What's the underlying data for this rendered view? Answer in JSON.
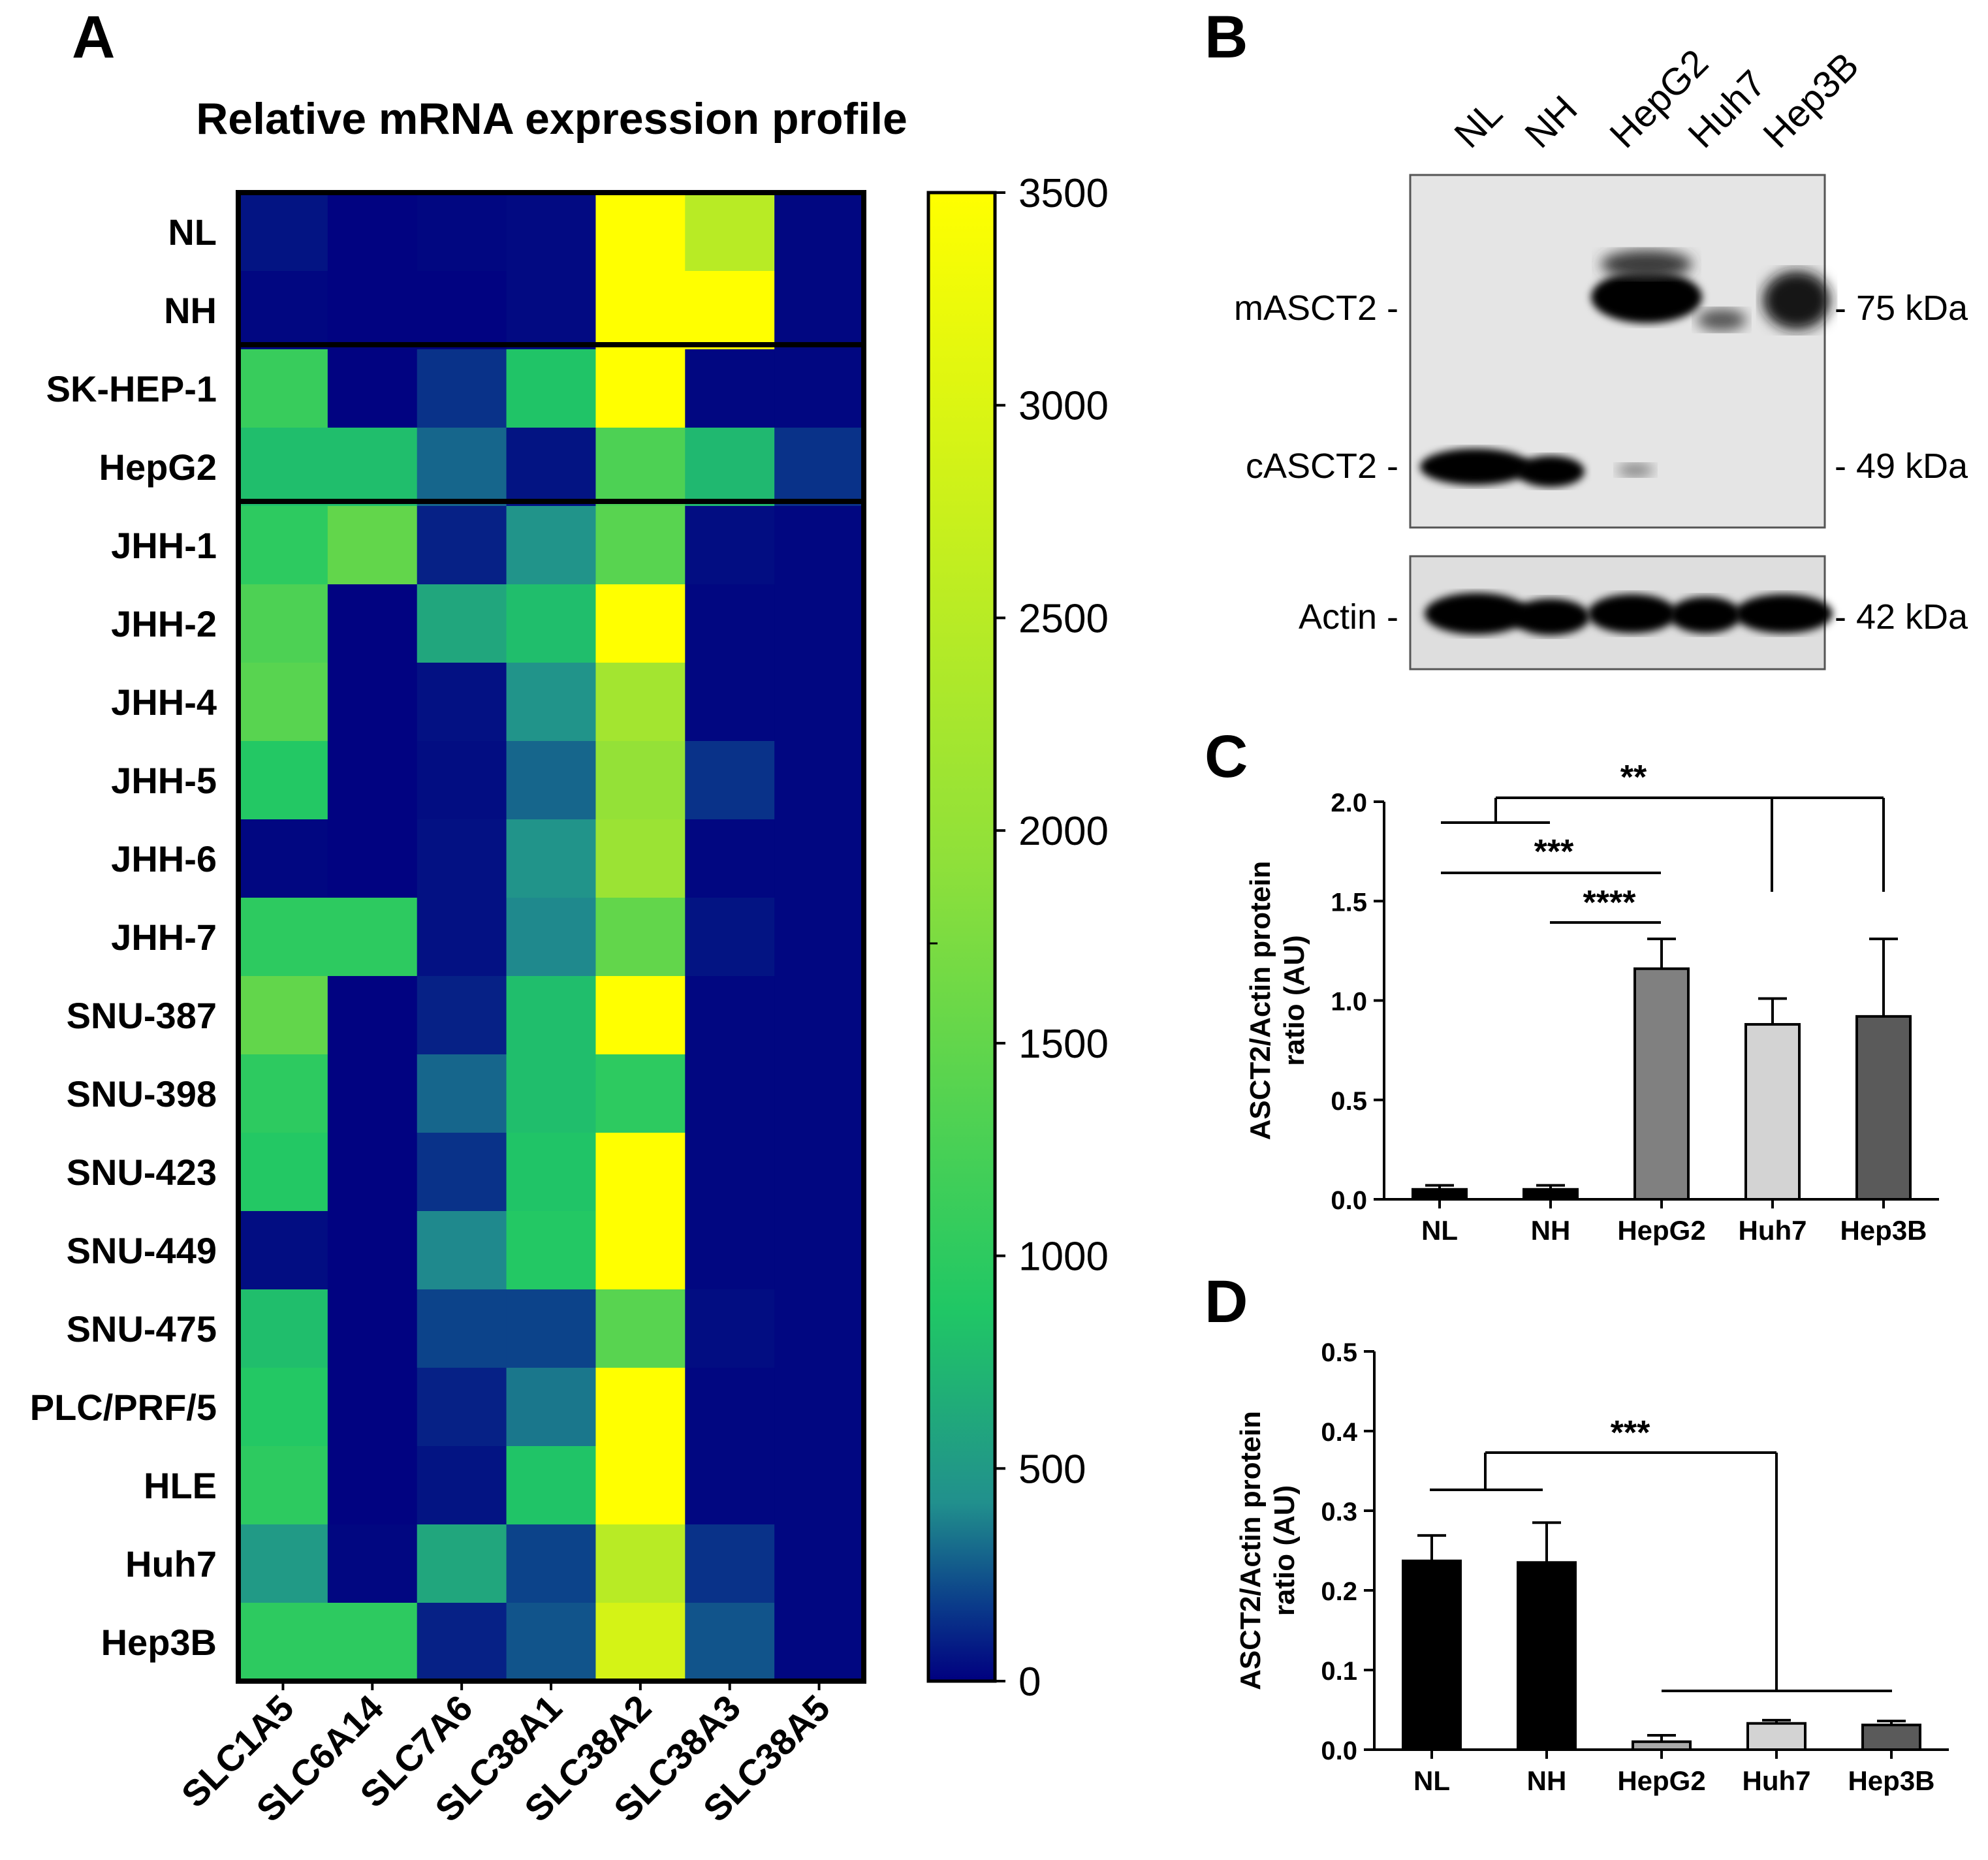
{
  "panels": {
    "A": {
      "letter": "A"
    },
    "B": {
      "letter": "B"
    },
    "C": {
      "letter": "C"
    },
    "D": {
      "letter": "D"
    }
  },
  "chart_data": [
    {
      "type": "heatmap",
      "title": "Relative mRNA expression profile",
      "rows": [
        "NL",
        "NH",
        "SK-HEP-1",
        "HepG2",
        "JHH-1",
        "JHH-2",
        "JHH-4",
        "JHH-5",
        "JHH-6",
        "JHH-7",
        "SNU-387",
        "SNU-398",
        "SNU-423",
        "SNU-449",
        "SNU-475",
        "PLC/PRF/5",
        "HLE",
        "Huh7",
        "Hep3B"
      ],
      "columns": [
        "SLC1A5",
        "SLC6A14",
        "SLC7A6",
        "SLC38A1",
        "SLC38A2",
        "SLC38A3",
        "SLC38A5"
      ],
      "values": [
        [
          60,
          10,
          20,
          30,
          3500,
          2500,
          20
        ],
        [
          20,
          10,
          10,
          30,
          3500,
          3500,
          20
        ],
        [
          1100,
          10,
          150,
          850,
          3500,
          20,
          20
        ],
        [
          800,
          800,
          300,
          60,
          1300,
          750,
          150
        ],
        [
          1000,
          1500,
          100,
          450,
          1400,
          40,
          20
        ],
        [
          1300,
          10,
          600,
          800,
          3500,
          20,
          20
        ],
        [
          1400,
          10,
          50,
          450,
          2200,
          20,
          20
        ],
        [
          900,
          10,
          40,
          300,
          2000,
          150,
          20
        ],
        [
          20,
          10,
          50,
          450,
          2100,
          20,
          20
        ],
        [
          1000,
          1000,
          50,
          400,
          1500,
          60,
          20
        ],
        [
          1500,
          10,
          100,
          800,
          3500,
          20,
          20
        ],
        [
          1000,
          10,
          300,
          800,
          1000,
          20,
          20
        ],
        [
          900,
          10,
          150,
          850,
          3500,
          20,
          20
        ],
        [
          40,
          10,
          400,
          900,
          3500,
          20,
          20
        ],
        [
          800,
          10,
          200,
          200,
          1400,
          40,
          20
        ],
        [
          900,
          10,
          100,
          350,
          3500,
          20,
          20
        ],
        [
          1000,
          10,
          60,
          850,
          3500,
          20,
          20
        ],
        [
          500,
          20,
          600,
          200,
          2500,
          150,
          20
        ],
        [
          1000,
          1000,
          100,
          250,
          2900,
          250,
          20
        ]
      ],
      "colorbar": {
        "min": 0,
        "max": 3500,
        "ticks": [
          "3500",
          "3000",
          "2500",
          "2000",
          "1500",
          "1000",
          "500",
          "0"
        ]
      },
      "colormap": [
        "#440154",
        "#000080",
        "#0a3a8a",
        "#21908d",
        "#20c765",
        "#8fe03a",
        "#ffff00"
      ]
    },
    {
      "type": "western-blot",
      "lanes": [
        "NL",
        "NH",
        "HepG2",
        "Huh7",
        "Hep3B"
      ],
      "bands_left": {
        "m": "mASCT2 -",
        "c": "cASCT2 -",
        "actin": "Actin -"
      },
      "bands_right": {
        "m": "- 75 kDa",
        "c": "- 49 kDa",
        "actin": "- 42 kDa"
      }
    },
    {
      "type": "bar",
      "categories": [
        "NL",
        "NH",
        "HepG2",
        "Huh7",
        "Hep3B"
      ],
      "values": [
        0.05,
        0.05,
        1.16,
        0.88,
        0.92
      ],
      "errors": [
        0.02,
        0.02,
        0.15,
        0.13,
        0.39
      ],
      "colors": [
        "#000000",
        "#000000",
        "#808080",
        "#d3d3d3",
        "#5a5a5a"
      ],
      "ylabel_line1": "ASCT2/Actin protein",
      "ylabel_line2": "ratio (AU)",
      "ylim": [
        0,
        2.0
      ],
      "yticks": [
        "0.0",
        "0.5",
        "1.0",
        "1.5",
        "2.0"
      ],
      "significance": [
        "**",
        "***",
        "****"
      ]
    },
    {
      "type": "bar",
      "categories": [
        "NL",
        "NH",
        "HepG2",
        "Huh7",
        "Hep3B"
      ],
      "values": [
        0.237,
        0.235,
        0.01,
        0.033,
        0.031
      ],
      "errors": [
        0.032,
        0.05,
        0.008,
        0.004,
        0.005
      ],
      "colors": [
        "#000000",
        "#000000",
        "#a9a9a9",
        "#d3d3d3",
        "#5a5a5a"
      ],
      "ylabel_line1": "ASCT2/Actin protein",
      "ylabel_line2": "ratio (AU)",
      "ylim": [
        0,
        0.5
      ],
      "yticks": [
        "0.0",
        "0.1",
        "0.2",
        "0.3",
        "0.4",
        "0.5"
      ],
      "significance": [
        "***"
      ]
    }
  ]
}
